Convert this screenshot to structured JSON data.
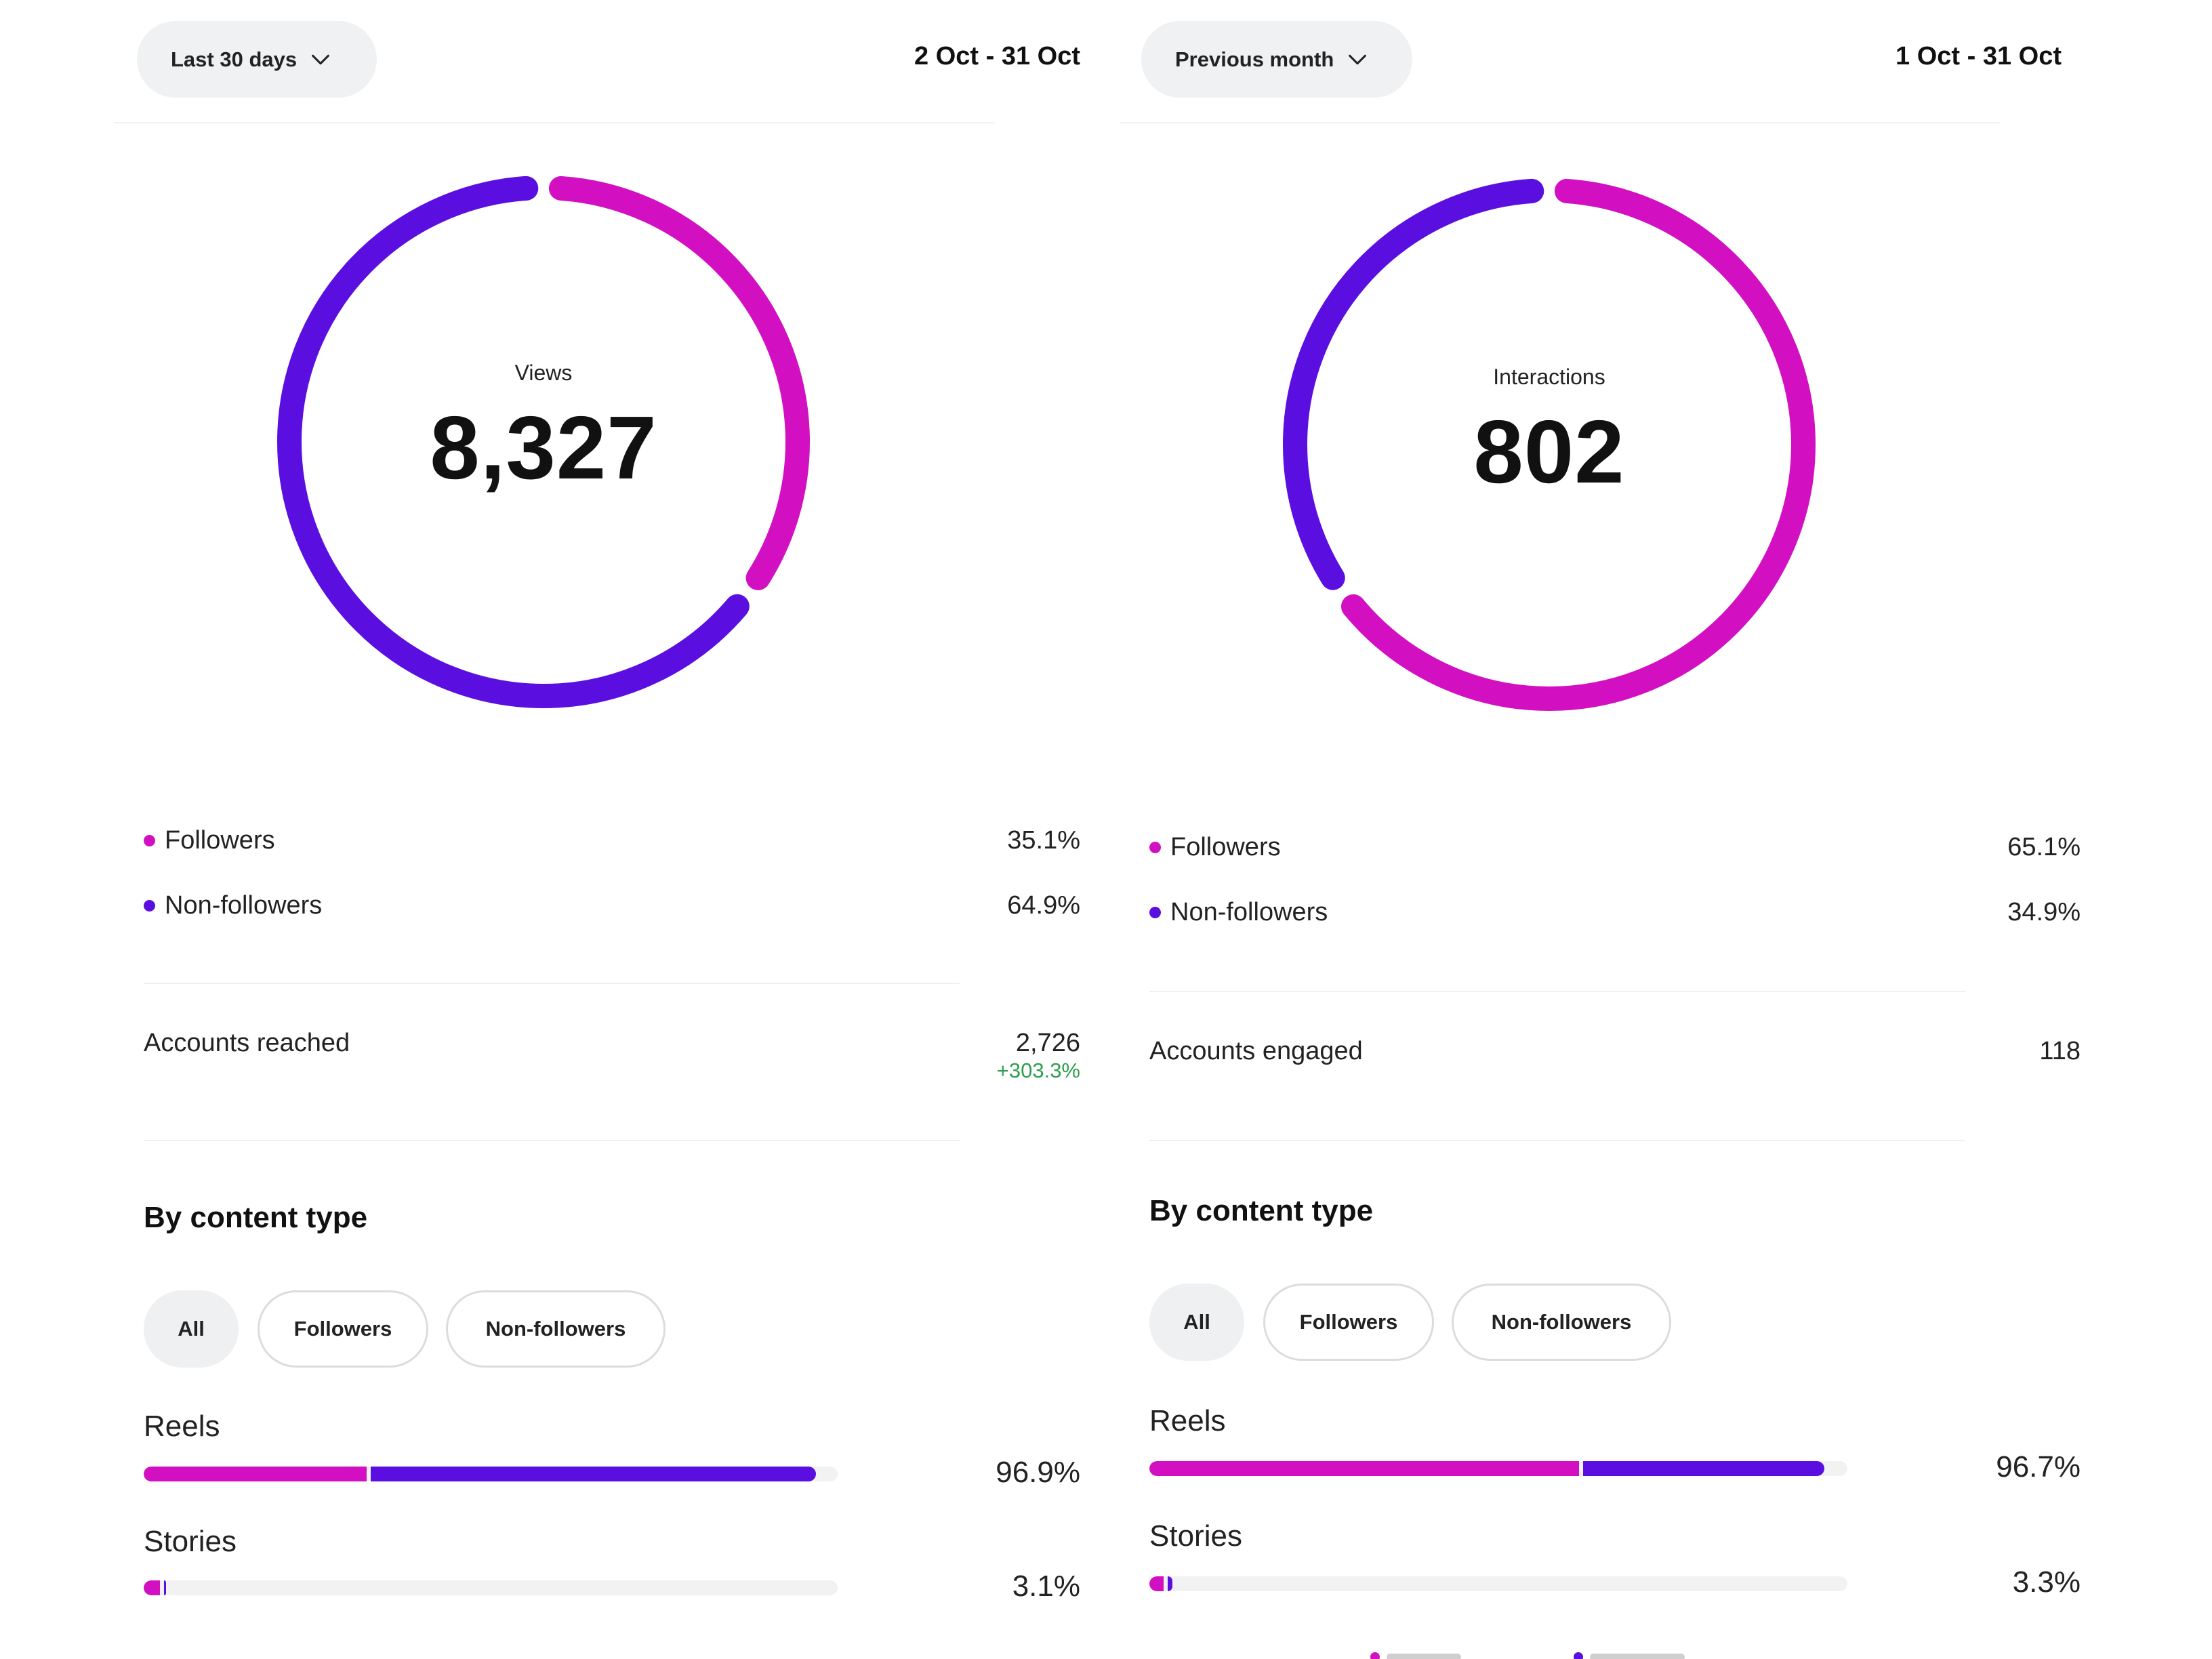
{
  "colors": {
    "followers": "#d210c2",
    "non_followers": "#5a0fe0",
    "positive": "#2e9e4f"
  },
  "left": {
    "dropdown_label": "Last 30 days",
    "dropdown_icon": "chevron-down-icon",
    "date_range": "2 Oct - 31 Oct",
    "metric_label": "Views",
    "metric_value": "8,327",
    "legend": [
      {
        "label": "Followers",
        "value": "35.1%",
        "share": 0.351
      },
      {
        "label": "Non-followers",
        "value": "64.9%",
        "share": 0.649
      }
    ],
    "stat_label": "Accounts reached",
    "stat_value": "2,726",
    "stat_change": "+303.3%",
    "section_title": "By content type",
    "filters": [
      "All",
      "Followers",
      "Non-followers"
    ],
    "bars": [
      {
        "label": "Reels",
        "pct": "96.9%",
        "total": 0.969,
        "followers_share": 0.335
      },
      {
        "label": "Stories",
        "pct": "3.1%",
        "total": 0.031,
        "followers_share": 0.85
      }
    ]
  },
  "right": {
    "dropdown_label": "Previous month",
    "dropdown_icon": "chevron-down-icon",
    "date_range": "1 Oct - 31 Oct",
    "metric_label": "Interactions",
    "metric_value": "802",
    "legend": [
      {
        "label": "Followers",
        "value": "65.1%",
        "share": 0.651
      },
      {
        "label": "Non-followers",
        "value": "34.9%",
        "share": 0.349
      }
    ],
    "stat_label": "Accounts engaged",
    "stat_value": "118",
    "section_title": "By content type",
    "filters": [
      "All",
      "Followers",
      "Non-followers"
    ],
    "bars": [
      {
        "label": "Reels",
        "pct": "96.7%",
        "total": 0.967,
        "followers_share": 0.64
      },
      {
        "label": "Stories",
        "pct": "3.3%",
        "total": 0.033,
        "followers_share": 0.7
      }
    ]
  }
}
